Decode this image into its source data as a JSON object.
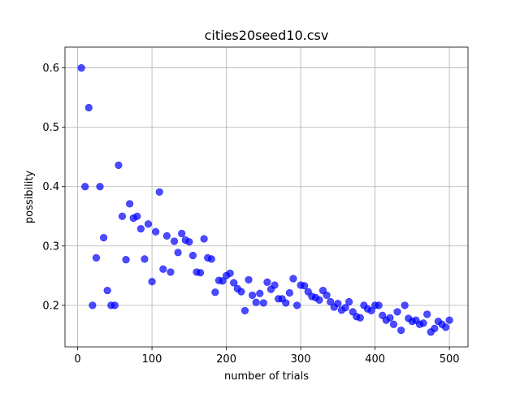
{
  "chart_data": {
    "type": "scatter",
    "title": "cities20seed10.csv",
    "xlabel": "number of trials",
    "ylabel": "possibility",
    "xlim": [
      -17,
      525
    ],
    "ylim": [
      0.13,
      0.635
    ],
    "xticks": [
      0,
      100,
      200,
      300,
      400,
      500
    ],
    "xtick_labels": [
      "0",
      "100",
      "200",
      "300",
      "400",
      "500"
    ],
    "yticks": [
      0.2,
      0.3,
      0.4,
      0.5,
      0.6
    ],
    "ytick_labels": [
      "0.2",
      "0.3",
      "0.4",
      "0.5",
      "0.6"
    ],
    "grid": true,
    "legend": "none",
    "marker_color": "#0000ff",
    "marker_alpha": 0.7,
    "points": [
      [
        5,
        0.6
      ],
      [
        10,
        0.4
      ],
      [
        15,
        0.533
      ],
      [
        20,
        0.2
      ],
      [
        25,
        0.28
      ],
      [
        30,
        0.4
      ],
      [
        35,
        0.314
      ],
      [
        40,
        0.225
      ],
      [
        45,
        0.2
      ],
      [
        50,
        0.2
      ],
      [
        55,
        0.436
      ],
      [
        60,
        0.35
      ],
      [
        65,
        0.277
      ],
      [
        70,
        0.371
      ],
      [
        75,
        0.347
      ],
      [
        80,
        0.35
      ],
      [
        85,
        0.329
      ],
      [
        90,
        0.278
      ],
      [
        95,
        0.337
      ],
      [
        100,
        0.24
      ],
      [
        105,
        0.324
      ],
      [
        110,
        0.391
      ],
      [
        115,
        0.261
      ],
      [
        120,
        0.317
      ],
      [
        125,
        0.256
      ],
      [
        130,
        0.308
      ],
      [
        135,
        0.289
      ],
      [
        140,
        0.321
      ],
      [
        145,
        0.31
      ],
      [
        150,
        0.307
      ],
      [
        155,
        0.284
      ],
      [
        160,
        0.256
      ],
      [
        165,
        0.255
      ],
      [
        170,
        0.312
      ],
      [
        175,
        0.28
      ],
      [
        180,
        0.278
      ],
      [
        185,
        0.222
      ],
      [
        190,
        0.242
      ],
      [
        195,
        0.241
      ],
      [
        200,
        0.25
      ],
      [
        205,
        0.254
      ],
      [
        210,
        0.238
      ],
      [
        215,
        0.228
      ],
      [
        220,
        0.223
      ],
      [
        225,
        0.191
      ],
      [
        230,
        0.243
      ],
      [
        235,
        0.217
      ],
      [
        240,
        0.205
      ],
      [
        245,
        0.22
      ],
      [
        250,
        0.204
      ],
      [
        255,
        0.239
      ],
      [
        260,
        0.227
      ],
      [
        265,
        0.234
      ],
      [
        270,
        0.211
      ],
      [
        275,
        0.211
      ],
      [
        280,
        0.204
      ],
      [
        285,
        0.221
      ],
      [
        290,
        0.245
      ],
      [
        295,
        0.2
      ],
      [
        300,
        0.234
      ],
      [
        305,
        0.233
      ],
      [
        310,
        0.223
      ],
      [
        315,
        0.215
      ],
      [
        320,
        0.213
      ],
      [
        325,
        0.209
      ],
      [
        330,
        0.225
      ],
      [
        335,
        0.217
      ],
      [
        340,
        0.206
      ],
      [
        345,
        0.197
      ],
      [
        350,
        0.203
      ],
      [
        355,
        0.192
      ],
      [
        360,
        0.196
      ],
      [
        365,
        0.206
      ],
      [
        370,
        0.189
      ],
      [
        375,
        0.181
      ],
      [
        380,
        0.179
      ],
      [
        385,
        0.2
      ],
      [
        390,
        0.194
      ],
      [
        395,
        0.191
      ],
      [
        400,
        0.2
      ],
      [
        405,
        0.2
      ],
      [
        410,
        0.183
      ],
      [
        415,
        0.175
      ],
      [
        420,
        0.179
      ],
      [
        425,
        0.168
      ],
      [
        430,
        0.189
      ],
      [
        435,
        0.158
      ],
      [
        440,
        0.2
      ],
      [
        445,
        0.178
      ],
      [
        450,
        0.173
      ],
      [
        455,
        0.175
      ],
      [
        460,
        0.168
      ],
      [
        465,
        0.17
      ],
      [
        470,
        0.185
      ],
      [
        475,
        0.155
      ],
      [
        480,
        0.161
      ],
      [
        485,
        0.173
      ],
      [
        490,
        0.168
      ],
      [
        495,
        0.163
      ],
      [
        500,
        0.175
      ]
    ]
  }
}
